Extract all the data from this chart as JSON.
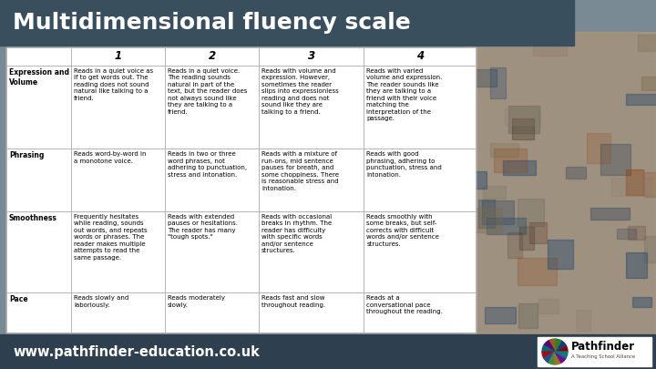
{
  "title": "Multidimensional fluency scale",
  "title_bg": "#3a4f5e",
  "title_color": "#ffffff",
  "footer_bg": "#2e4050",
  "footer_text": "www.pathfinder-education.co.uk",
  "footer_text_color": "#ffffff",
  "col_headers": [
    "",
    "1",
    "2",
    "3",
    "4"
  ],
  "row_headers": [
    "Expression and\nVolume",
    "Phrasing",
    "Smoothness",
    "Pace"
  ],
  "cells": [
    [
      "Reads in a quiet voice as\nif to get words out. The\nreading does not sound\nnatural like talking to a\nfriend.",
      "Reads in a quiet voice.\nThe reading sounds\nnatural in part of the\ntext, but the reader does\nnot always sound like\nthey are talking to a\nfriend.",
      "Reads with volume and\nexpression. However,\nsometimes the reader\nslips into expressionless\nreading and does not\nsound like they are\ntalking to a friend.",
      "Reads with varied\nvolume and expression.\nThe reader sounds like\nthey are talking to a\nfriend with their voice\nmatching the\ninterpretation of the\npassage."
    ],
    [
      "Reads word-by-word in\na monotone voice.",
      "Reads in two or three\nword phrases, not\nadhering to punctuation,\nstress and intonation.",
      "Reads with a mixture of\nrun-ons, mid sentence\npauses for breath, and\nsome choppiness. There\nis reasonable stress and\nintonation.",
      "Reads with good\nphrasing, adhering to\npunctuation, stress and\nintonation."
    ],
    [
      "Frequently hesitates\nwhile reading, sounds\nout words, and repeats\nwords or phrases. The\nreader makes multiple\nattempts to read the\nsame passage.",
      "Reads with extended\npauses or hesitations.\nThe reader has many\n\"tough spots.\"",
      "Reads with occasional\nbreaks in rhythm. The\nreader has difficulty\nwith specific words\nand/or sentence\nstructures.",
      "Reads smoothly with\nsome breaks, but self-\ncorrects with difficult\nwords and/or sentence\nstructures."
    ],
    [
      "Reads slowly and\nlaboriously.",
      "Reads moderately\nslowly.",
      "Reads fast and slow\nthroughout reading.",
      "Reads at a\nconversational pace\nthroughout the reading."
    ]
  ],
  "outer_bg": "#7a8a95",
  "deco_bg": "#a09080"
}
